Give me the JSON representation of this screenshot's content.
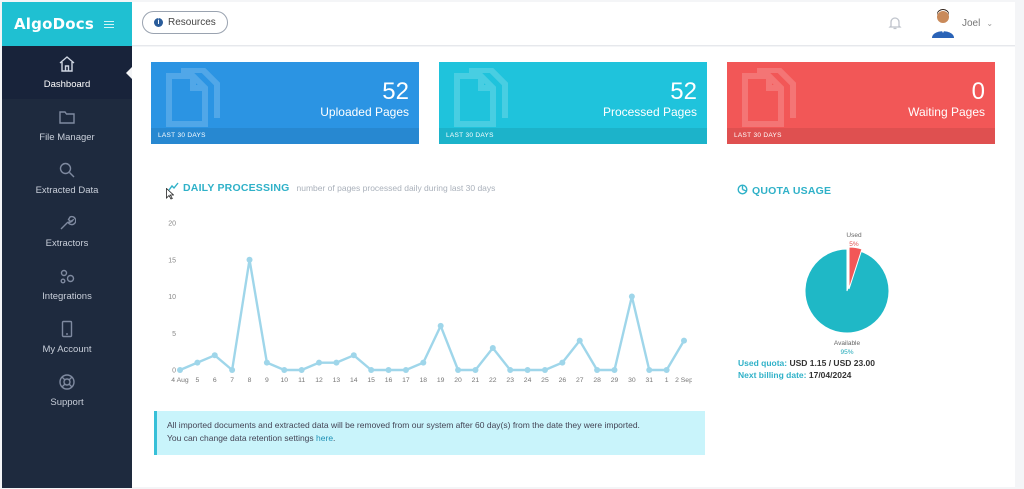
{
  "app": {
    "brand": "AlgoDocs"
  },
  "sidebar": {
    "items": [
      {
        "label": "Dashboard",
        "icon": "home-icon",
        "active": true
      },
      {
        "label": "File Manager",
        "icon": "folder-icon"
      },
      {
        "label": "Extracted Data",
        "icon": "search-icon"
      },
      {
        "label": "Extractors",
        "icon": "wrench-icon"
      },
      {
        "label": "Integrations",
        "icon": "gears-icon"
      },
      {
        "label": "My Account",
        "icon": "phone-icon"
      },
      {
        "label": "Support",
        "icon": "lifebuoy-icon"
      }
    ]
  },
  "header": {
    "resources_label": "Resources",
    "user_name": "Joel"
  },
  "stats": [
    {
      "value": "52",
      "label": "Uploaded Pages",
      "footer": "LAST 30 DAYS",
      "color": "#2b94e3"
    },
    {
      "value": "52",
      "label": "Processed Pages",
      "footer": "LAST 30 DAYS",
      "color": "#1fc3dc"
    },
    {
      "value": "0",
      "label": "Waiting Pages",
      "footer": "LAST 30 DAYS",
      "color": "#f25757"
    }
  ],
  "daily": {
    "title": "DAILY PROCESSING",
    "subtitle": "number of pages processed daily during last 30 days"
  },
  "quota": {
    "title": "QUOTA USAGE",
    "used_label": "Used",
    "used_pct_label": "5%",
    "available_label": "Available",
    "available_pct_label": "95%",
    "used_key": "Used quota:",
    "used_value": "USD 1.15 / USD 23.00",
    "billing_key": "Next billing date:",
    "billing_value": "17/04/2024",
    "used_fraction": 0.05,
    "used_color": "#f25757",
    "available_color": "#1fb8c6"
  },
  "notice": {
    "line1": "All imported documents and extracted data will be removed from our system after 60 day(s) from the date they were imported.",
    "line2_prefix": "You can change data retention settings ",
    "line2_link": "here",
    "line2_suffix": "."
  },
  "chart_data": {
    "type": "line",
    "title": "DAILY PROCESSING",
    "subtitle": "number of pages processed daily during last 30 days",
    "xlabel": "",
    "ylabel": "",
    "ylim": [
      0,
      20
    ],
    "yticks": [
      0,
      5,
      10,
      15,
      20
    ],
    "grid": false,
    "categories": [
      "4 Aug",
      "5",
      "6",
      "7",
      "8",
      "9",
      "10",
      "11",
      "12",
      "13",
      "14",
      "15",
      "16",
      "17",
      "18",
      "19",
      "20",
      "21",
      "22",
      "23",
      "24",
      "25",
      "26",
      "27",
      "28",
      "29",
      "30",
      "31",
      "1",
      "2 Sep"
    ],
    "values": [
      0,
      1,
      2,
      0,
      15,
      1,
      0,
      0,
      1,
      1,
      2,
      0,
      0,
      0,
      1,
      6,
      0,
      0,
      3,
      0,
      0,
      0,
      1,
      4,
      0,
      0,
      10,
      0,
      0,
      4
    ],
    "color": "#9fd6ea"
  }
}
